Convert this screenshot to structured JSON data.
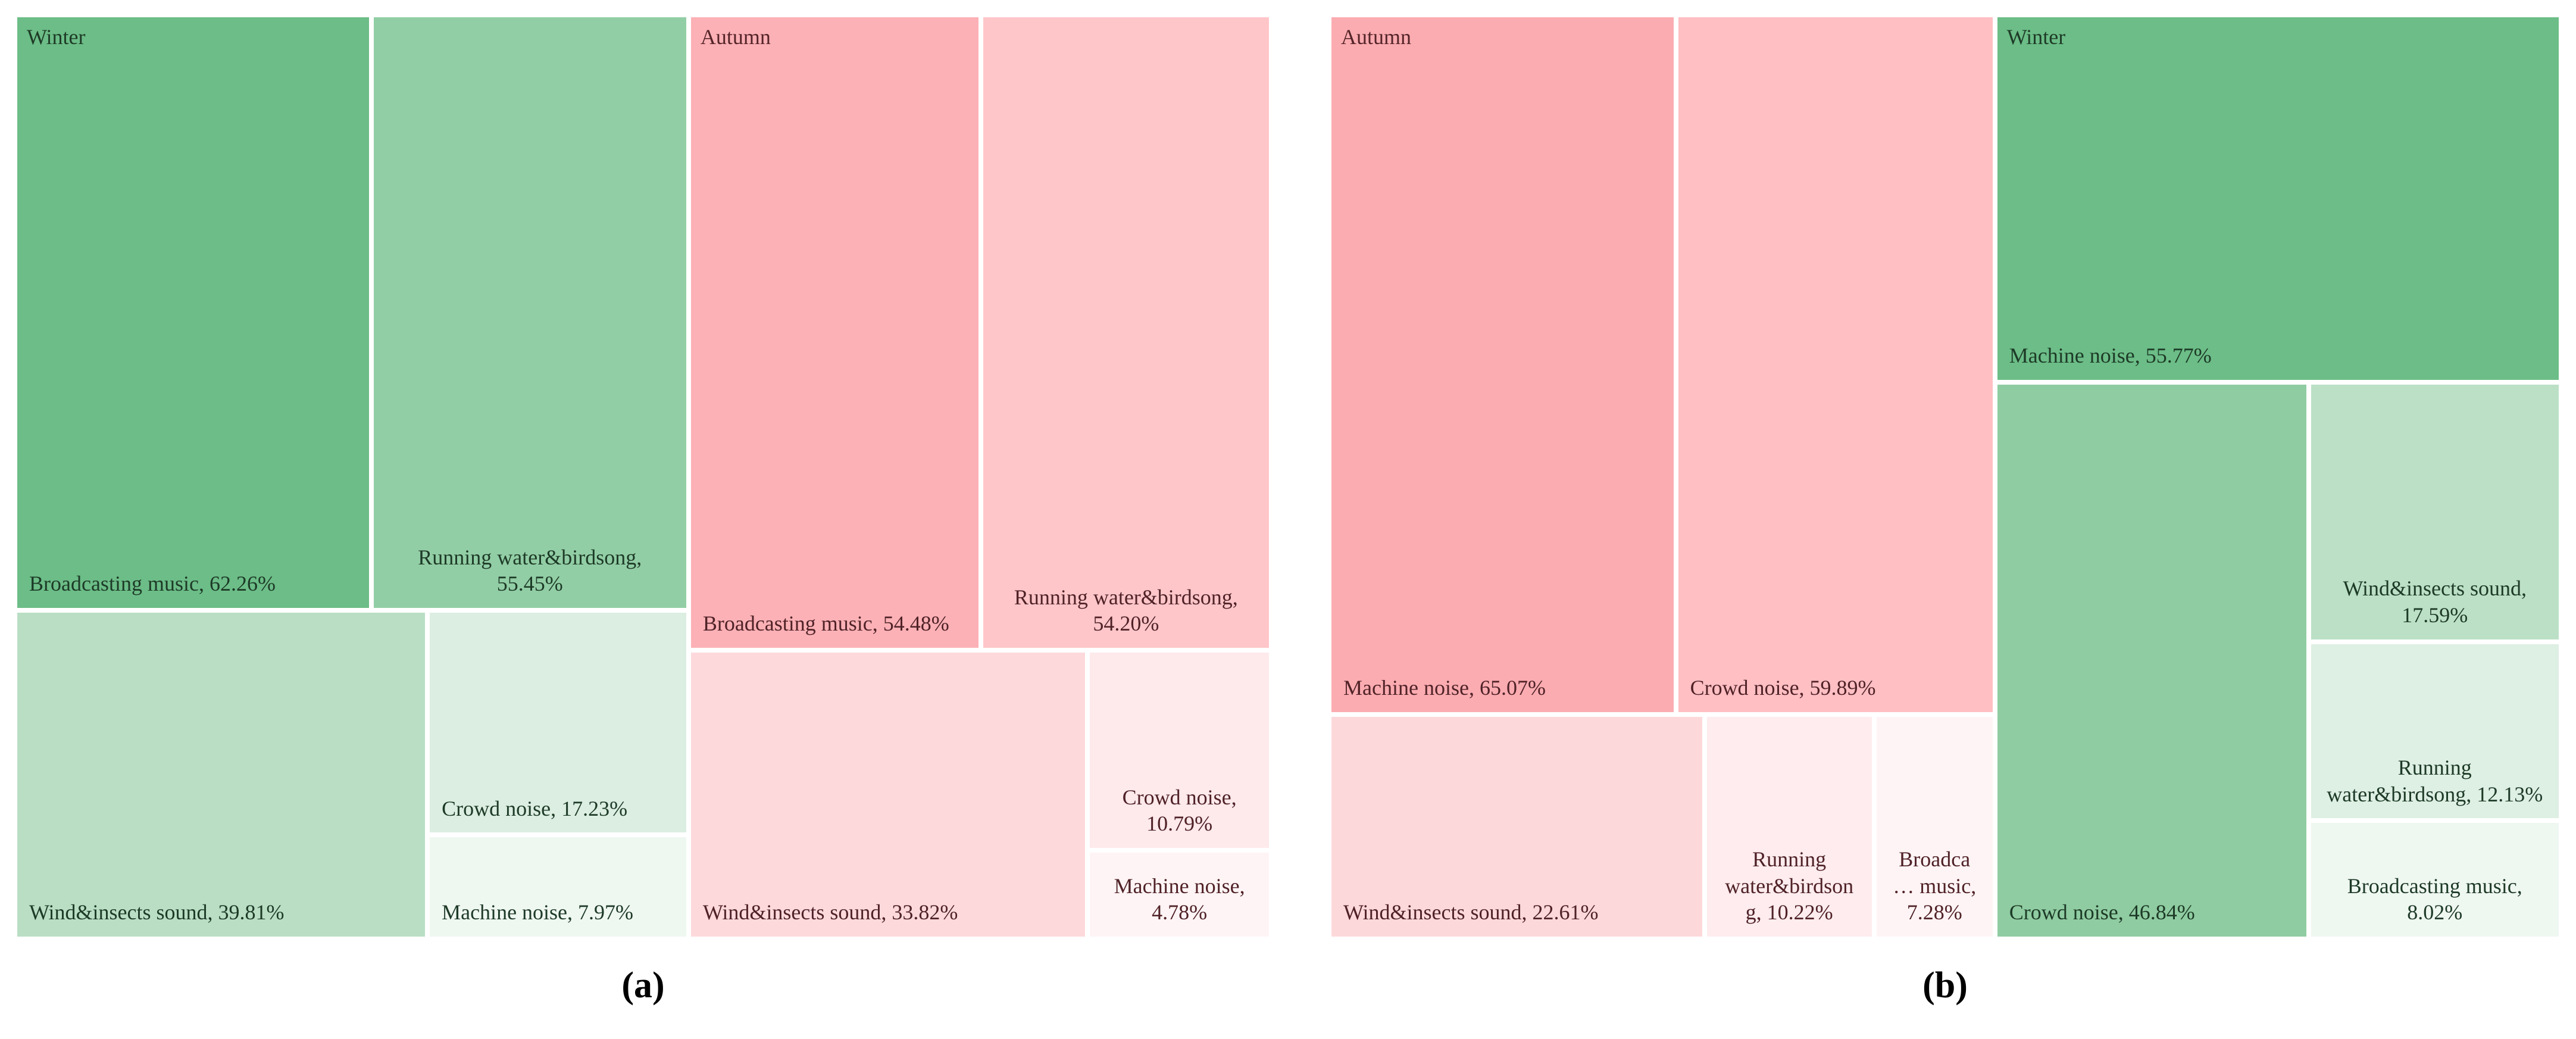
{
  "figure": {
    "background": "#FFFFFF",
    "description_unit": "%"
  },
  "chart_data": [
    {
      "type": "treemap",
      "panel": "a",
      "caption": "(a)",
      "legend_position": "none",
      "groups": [
        {
          "name": "Winter",
          "label_color": "#1E3B27",
          "text_color": "#1D3A27",
          "arrangement": [
            [
              0,
              1
            ],
            [
              2,
              [
                "col",
                3,
                4
              ]
            ]
          ],
          "items": [
            {
              "label": "Broadcasting music, 62.26%",
              "category": "Broadcasting music",
              "value": 62.26,
              "color": "#6CBD87",
              "align": "left"
            },
            {
              "label": "Running water&birdsong, 55.45%",
              "category": "Running water&birdsong",
              "value": 55.45,
              "color": "#92CEA5",
              "align": "center"
            },
            {
              "label": "Wind&insects sound, 39.81%",
              "category": "Wind&insects sound",
              "value": 39.81,
              "color": "#B9DEC4",
              "align": "left"
            },
            {
              "label": "Crowd noise, 17.23%",
              "category": "Crowd noise",
              "value": 17.23,
              "color": "#DCEEE1",
              "align": "left"
            },
            {
              "label": "Machine noise, 7.97%",
              "category": "Machine noise",
              "value": 7.97,
              "color": "#EFF7F1",
              "align": "left"
            }
          ]
        },
        {
          "name": "Autumn",
          "label_color": "#542428",
          "text_color": "#4F2227",
          "arrangement": [
            [
              0,
              1
            ],
            [
              2,
              [
                "col",
                3,
                4
              ]
            ]
          ],
          "items": [
            {
              "label": "Broadcasting music, 54.48%",
              "category": "Broadcasting music",
              "value": 54.48,
              "color": "#FCB1B6",
              "align": "left"
            },
            {
              "label": "Running water&birdsong, 54.20%",
              "category": "Running water&birdsong",
              "value": 54.2,
              "color": "#FFC6C9",
              "align": "center"
            },
            {
              "label": "Wind&insects sound, 33.82%",
              "category": "Wind&insects sound",
              "value": 33.82,
              "color": "#FDD9DC",
              "align": "left"
            },
            {
              "label": "Crowd noise, 10.79%",
              "category": "Crowd noise",
              "value": 10.79,
              "color": "#FEE9EB",
              "align": "center"
            },
            {
              "label": "Machine noise, 4.78%",
              "category": "Machine noise",
              "value": 4.78,
              "color": "#FFF4F5",
              "align": "center"
            }
          ]
        }
      ]
    },
    {
      "type": "treemap",
      "panel": "b",
      "caption": "(b)",
      "legend_position": "none",
      "groups": [
        {
          "name": "Autumn",
          "label_color": "#542428",
          "text_color": "#4F2227",
          "arrangement": [
            [
              0,
              1
            ],
            [
              2,
              3,
              4
            ]
          ],
          "items": [
            {
              "label": "Machine noise, 65.07%",
              "category": "Machine noise",
              "value": 65.07,
              "color": "#FBACB1",
              "align": "left"
            },
            {
              "label": "Crowd noise, 59.89%",
              "category": "Crowd noise",
              "value": 59.89,
              "color": "#FFBFC3",
              "align": "left"
            },
            {
              "label": "Wind&insects sound, 22.61%",
              "category": "Wind&insects sound",
              "value": 22.61,
              "color": "#FDD8DB",
              "align": "left"
            },
            {
              "label": "Running water&birdsong, 10.22%",
              "category": "Running water&birdsong",
              "value": 10.22,
              "color": "#FEECEE",
              "align": "center"
            },
            {
              "label": "Broadca… music, 7.28%",
              "category": "Broadcasting music",
              "value": 7.28,
              "color": "#FFF4F5",
              "align": "center"
            }
          ]
        },
        {
          "name": "Winter",
          "label_color": "#1E3B27",
          "text_color": "#1D3A27",
          "arrangement": [
            [
              0
            ],
            [
              1,
              [
                "col",
                2,
                3,
                4
              ]
            ]
          ],
          "items": [
            {
              "label": "Machine noise, 55.77%",
              "category": "Machine noise",
              "value": 55.77,
              "color": "#6CBD87",
              "align": "left"
            },
            {
              "label": "Crowd noise, 46.84%",
              "category": "Crowd noise",
              "value": 46.84,
              "color": "#8FCCA1",
              "align": "left"
            },
            {
              "label": "Wind&insects sound, 17.59%",
              "category": "Wind&insects sound",
              "value": 17.59,
              "color": "#BCE0C6",
              "align": "center"
            },
            {
              "label": "Running water&birdsong, 12.13%",
              "category": "Running water&birdsong",
              "value": 12.13,
              "color": "#DEEFE3",
              "align": "center"
            },
            {
              "label": "Broadcasting music, 8.02%",
              "category": "Broadcasting music",
              "value": 8.02,
              "color": "#EFF7F1",
              "align": "center"
            }
          ]
        }
      ]
    }
  ]
}
